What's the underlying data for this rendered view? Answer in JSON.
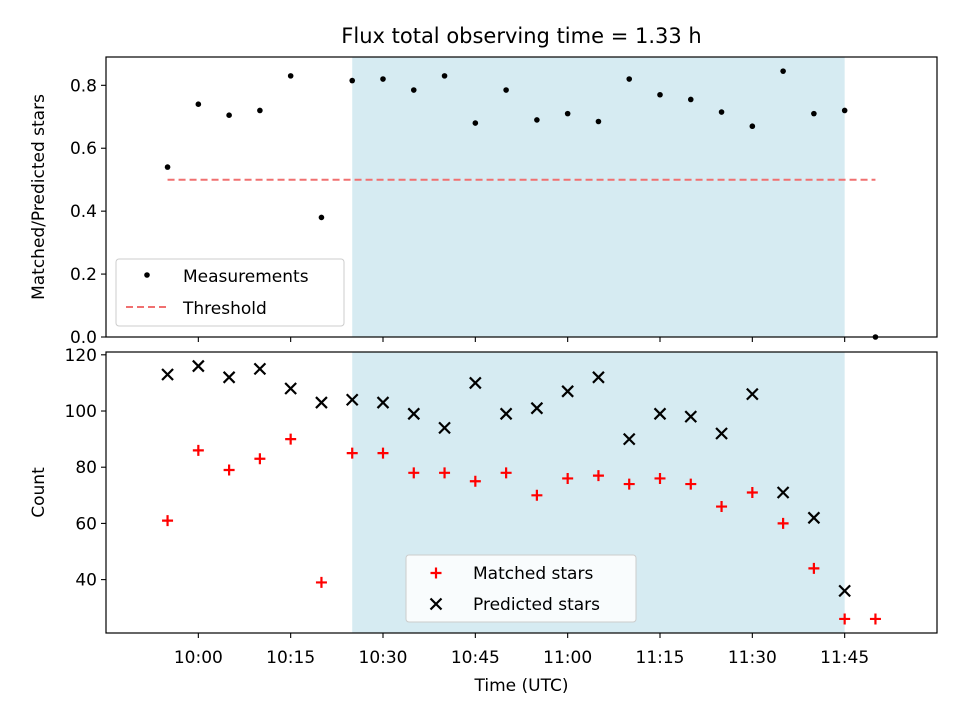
{
  "chart_data": [
    {
      "type": "scatter",
      "title": "Flux total observing time = 1.33 h",
      "xlabel": "",
      "ylabel": "Matched/Predicted stars",
      "ylim": [
        0,
        0.89
      ],
      "yticks": [
        0.0,
        0.2,
        0.4,
        0.6,
        0.8
      ],
      "ytick_labels": [
        "0.0",
        "0.2",
        "0.4",
        "0.6",
        "0.8"
      ],
      "grid": false,
      "legend_position": "bottom-left",
      "shaded_interval": {
        "start": "10:25",
        "end": "11:45"
      },
      "series": [
        {
          "name": "Measurements",
          "marker": "dot",
          "color": "#000000",
          "x": [
            "09:55",
            "10:00",
            "10:05",
            "10:10",
            "10:15",
            "10:20",
            "10:25",
            "10:30",
            "10:35",
            "10:40",
            "10:45",
            "10:50",
            "10:55",
            "11:00",
            "11:05",
            "11:10",
            "11:15",
            "11:20",
            "11:25",
            "11:30",
            "11:35",
            "11:40",
            "11:45",
            "11:50"
          ],
          "y": [
            0.54,
            0.74,
            0.705,
            0.72,
            0.83,
            0.38,
            0.815,
            0.82,
            0.785,
            0.83,
            0.68,
            0.785,
            0.69,
            0.71,
            0.685,
            0.82,
            0.77,
            0.755,
            0.715,
            0.67,
            0.845,
            0.71,
            0.72,
            0.0
          ]
        },
        {
          "name": "Threshold",
          "type": "line",
          "style": "dashed",
          "color": "#f07070",
          "x": [
            "09:55",
            "11:50"
          ],
          "y": [
            0.5,
            0.5
          ]
        }
      ]
    },
    {
      "type": "scatter",
      "title": "",
      "xlabel": "Time (UTC)",
      "ylabel": "Count",
      "ylim": [
        21,
        121
      ],
      "yticks": [
        40,
        60,
        80,
        100,
        120
      ],
      "ytick_labels": [
        "40",
        "60",
        "80",
        "100",
        "120"
      ],
      "xlim": [
        "09:45",
        "12:00"
      ],
      "xticks": [
        "10:00",
        "10:15",
        "10:30",
        "10:45",
        "11:00",
        "11:15",
        "11:30",
        "11:45"
      ],
      "grid": false,
      "legend_position": "bottom-center",
      "shaded_interval": {
        "start": "10:25",
        "end": "11:45"
      },
      "series": [
        {
          "name": "Matched stars",
          "marker": "plus",
          "color": "#ff0000",
          "x": [
            "09:55",
            "10:00",
            "10:05",
            "10:10",
            "10:15",
            "10:20",
            "10:25",
            "10:30",
            "10:35",
            "10:40",
            "10:45",
            "10:50",
            "10:55",
            "11:00",
            "11:05",
            "11:10",
            "11:15",
            "11:20",
            "11:25",
            "11:30",
            "11:35",
            "11:40",
            "11:45",
            "11:50"
          ],
          "y": [
            61,
            86,
            79,
            83,
            90,
            39,
            85,
            85,
            78,
            78,
            75,
            78,
            70,
            76,
            77,
            74,
            76,
            74,
            66,
            71,
            60,
            44,
            26,
            26
          ]
        },
        {
          "name": "Predicted stars",
          "marker": "x",
          "color": "#000000",
          "x": [
            "09:55",
            "10:00",
            "10:05",
            "10:10",
            "10:15",
            "10:20",
            "10:25",
            "10:30",
            "10:35",
            "10:40",
            "10:45",
            "10:50",
            "10:55",
            "11:00",
            "11:05",
            "11:10",
            "11:15",
            "11:20",
            "11:25",
            "11:30",
            "11:35",
            "11:40",
            "11:45"
          ],
          "y": [
            113,
            116,
            112,
            115,
            108,
            103,
            104,
            103,
            99,
            94,
            110,
            99,
            101,
            107,
            112,
            90,
            99,
            98,
            92,
            106,
            71,
            62,
            36
          ]
        }
      ]
    }
  ],
  "colors": {
    "shade": "#add8e6",
    "matched": "#ff0000",
    "predicted": "#000000",
    "threshold": "#f07070"
  }
}
